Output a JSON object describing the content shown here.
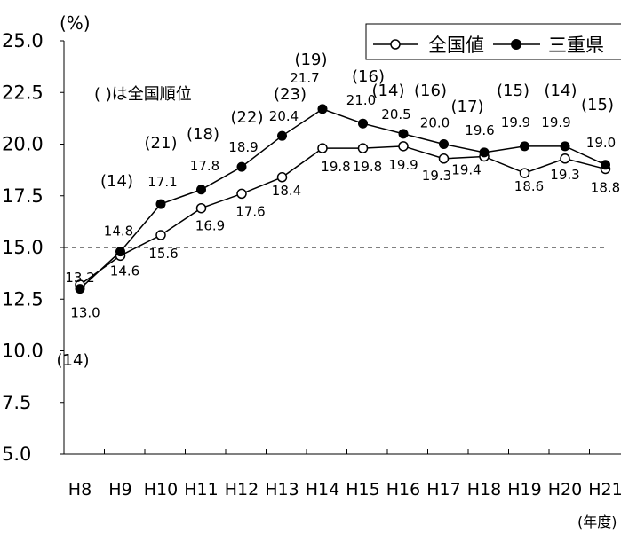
{
  "chart_data": {
    "type": "line",
    "yunit": "(%)",
    "xunit": "(年度)",
    "note": "(  )は全国順位",
    "categories": [
      "H8",
      "H9",
      "H10",
      "H11",
      "H12",
      "H13",
      "H14",
      "H15",
      "H16",
      "H17",
      "H18",
      "H19",
      "H20",
      "H21"
    ],
    "ylim": [
      5.0,
      25.0
    ],
    "yticks": [
      "25.0",
      "22.5",
      "20.0",
      "17.5",
      "15.0",
      "12.5",
      "10.0",
      "7.5",
      "5.0"
    ],
    "reference_y": 15.0,
    "grid": false,
    "legend_position": "top-right",
    "series": [
      {
        "name": "全国値",
        "marker": "open-circle",
        "values": [
          13.2,
          14.6,
          15.6,
          16.9,
          17.6,
          18.4,
          19.8,
          19.8,
          19.9,
          19.3,
          19.4,
          18.6,
          19.3,
          18.8
        ],
        "labels": [
          "13.2",
          "14.6",
          "15.6",
          "16.9",
          "17.6",
          "18.4",
          "19.8",
          "19.8",
          "19.9",
          "19.3",
          "19.4",
          "18.6",
          "19.3",
          "18.8"
        ]
      },
      {
        "name": "三重県",
        "marker": "filled-circle",
        "values": [
          13.0,
          14.8,
          17.1,
          17.8,
          18.9,
          20.4,
          21.7,
          21.0,
          20.5,
          20.0,
          19.6,
          19.9,
          19.9,
          19.0
        ],
        "labels": [
          "13.0",
          "14.8",
          "17.1",
          "17.8",
          "18.9",
          "20.4",
          "21.7",
          "21.0",
          "20.5",
          "20.0",
          "19.6",
          "19.9",
          "19.9",
          "19.0"
        ]
      }
    ],
    "ranks": [
      "(14)",
      "(14)",
      "(21)",
      "(18)",
      "(22)",
      "(23)",
      "(19)",
      "(16)",
      "(14)",
      "(16)",
      "(17)",
      "(15)",
      "(14)",
      "(15)"
    ]
  },
  "colors": {
    "line": "#000000",
    "background": "#ffffff"
  }
}
